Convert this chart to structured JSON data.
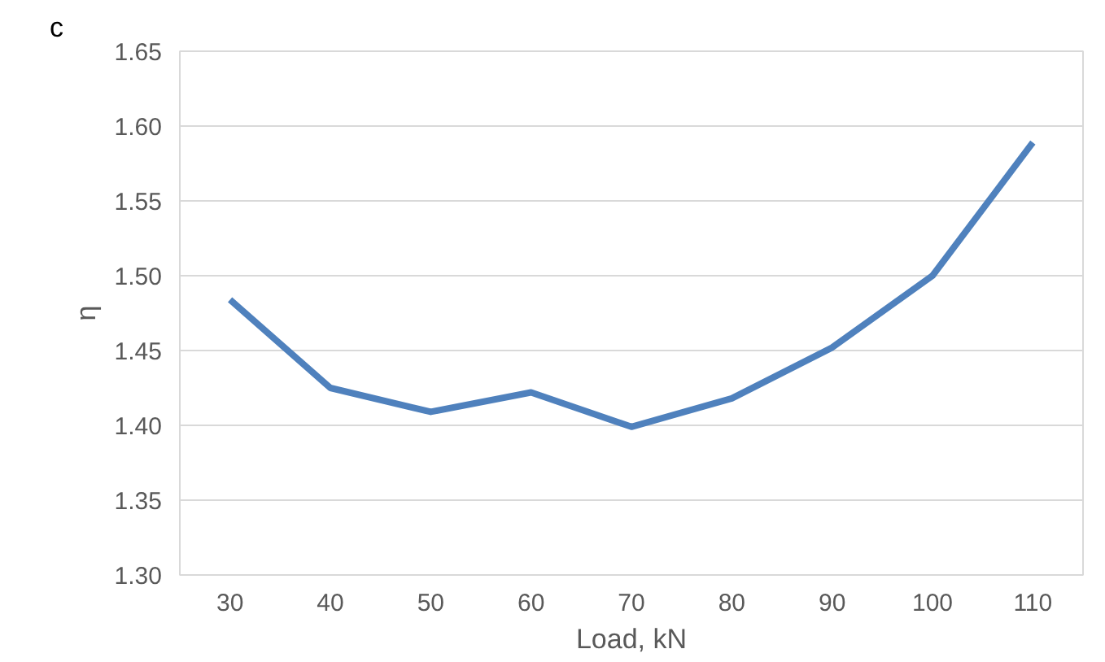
{
  "chart_data": {
    "type": "line",
    "xlabel": "Load, kN",
    "ylabel": "η",
    "annotations": [
      "c"
    ],
    "categories": [
      "30",
      "40",
      "50",
      "60",
      "70",
      "80",
      "90",
      "100",
      "110"
    ],
    "series": [
      {
        "color": "#4f81bd",
        "values": [
          1.484,
          1.425,
          1.409,
          1.422,
          1.399,
          1.418,
          1.452,
          1.5,
          1.589
        ]
      }
    ],
    "ylim": [
      1.3,
      1.65
    ],
    "yticks": [
      {
        "value": 1.3,
        "label": "1.30"
      },
      {
        "value": 1.35,
        "label": "1.35"
      },
      {
        "value": 1.4,
        "label": "1.40"
      },
      {
        "value": 1.45,
        "label": "1.45"
      },
      {
        "value": 1.5,
        "label": "1.50"
      },
      {
        "value": 1.55,
        "label": "1.55"
      },
      {
        "value": 1.6,
        "label": "1.60"
      },
      {
        "value": 1.65,
        "label": "1.65"
      }
    ],
    "grid": "y",
    "marker": "none",
    "line_style": "solid"
  }
}
